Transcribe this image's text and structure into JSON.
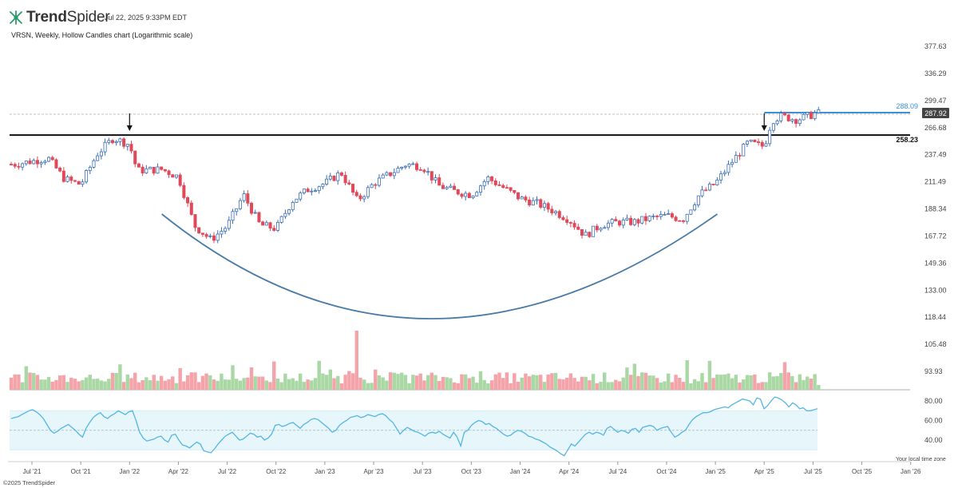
{
  "header": {
    "brand": "TrendSpider",
    "timestamp": "Jul 22, 2025 9:33PM EDT",
    "subtitle": "VRSN, Weekly, Hollow Candles chart (Logarithmic scale)"
  },
  "footer": {
    "copyright": "©2025 TrendSpider",
    "local_time": "Your local time zone"
  },
  "colors": {
    "up": "#3b6fb6",
    "down": "#e0495a",
    "vol_up": "#a9d8a4",
    "vol_down": "#f4a3a8",
    "resistance": "#111111",
    "recent_high": "#3d8fd8",
    "cup": "#4a7aa6",
    "rsi_line": "#55b5e3",
    "rsi_band": "#e6f6fa"
  },
  "chart_data": [
    {
      "type": "candlestick",
      "title": "VRSN, Weekly, Hollow Candles chart (Logarithmic scale)",
      "scale": "log",
      "x_ticks": [
        "Jul '21",
        "Oct '21",
        "Jan '22",
        "Apr '22",
        "Jul '22",
        "Oct '22",
        "Jan '23",
        "Apr '23",
        "Jul '23",
        "Oct '23",
        "Jan '24",
        "Apr '24",
        "Jul '24",
        "Oct '24",
        "Jan '25",
        "Apr '25",
        "Jul '25",
        "Oct '25",
        "Jan '26"
      ],
      "y_ticks": [
        "377.63",
        "336.29",
        "299.47",
        "266.68",
        "237.49",
        "211.49",
        "188.34",
        "167.72",
        "149.36",
        "133.00",
        "118.44",
        "105.48",
        "93.93"
      ],
      "ylim": [
        93.93,
        377.63
      ],
      "price_anchors": [
        {
          "date": "Jun '21",
          "close": 228
        },
        {
          "date": "Aug '21",
          "close": 234
        },
        {
          "date": "Sep '21",
          "close": 214
        },
        {
          "date": "Oct '21",
          "close": 209
        },
        {
          "date": "Nov '21",
          "close": 238
        },
        {
          "date": "Dec '21",
          "close": 255
        },
        {
          "date": "Jan '22",
          "close": 248
        },
        {
          "date": "Jan '22",
          "close": 222
        },
        {
          "date": "Mar '22",
          "close": 223
        },
        {
          "date": "Apr '22",
          "close": 216
        },
        {
          "date": "May '22",
          "close": 175
        },
        {
          "date": "Jun '22",
          "close": 165
        },
        {
          "date": "Jul '22",
          "close": 175
        },
        {
          "date": "Aug '22",
          "close": 200
        },
        {
          "date": "Sep '22",
          "close": 176
        },
        {
          "date": "Oct '22",
          "close": 173
        },
        {
          "date": "Nov '22",
          "close": 195
        },
        {
          "date": "Dec '22",
          "close": 205
        },
        {
          "date": "Jan '23",
          "close": 210
        },
        {
          "date": "Feb '23",
          "close": 220
        },
        {
          "date": "Mar '23",
          "close": 195
        },
        {
          "date": "Apr '23",
          "close": 210
        },
        {
          "date": "Jun '23",
          "close": 228
        },
        {
          "date": "Jul '23",
          "close": 226
        },
        {
          "date": "Aug '23",
          "close": 208
        },
        {
          "date": "Sep '23",
          "close": 203
        },
        {
          "date": "Oct '23",
          "close": 200
        },
        {
          "date": "Nov '23",
          "close": 215
        },
        {
          "date": "Dec '23",
          "close": 206
        },
        {
          "date": "Jan '24",
          "close": 197
        },
        {
          "date": "Feb '24",
          "close": 193
        },
        {
          "date": "Mar '24",
          "close": 187
        },
        {
          "date": "Apr '24",
          "close": 180
        },
        {
          "date": "May '24",
          "close": 168
        },
        {
          "date": "Jun '24",
          "close": 176
        },
        {
          "date": "Jul '24",
          "close": 178
        },
        {
          "date": "Aug '24",
          "close": 178
        },
        {
          "date": "Sep '24",
          "close": 181
        },
        {
          "date": "Oct '24",
          "close": 183
        },
        {
          "date": "Nov '24",
          "close": 180
        },
        {
          "date": "Dec '24",
          "close": 200
        },
        {
          "date": "Jan '25",
          "close": 210
        },
        {
          "date": "Feb '25",
          "close": 230
        },
        {
          "date": "Mar '25",
          "close": 250
        },
        {
          "date": "Apr '25",
          "close": 246
        },
        {
          "date": "Apr '25",
          "close": 275
        },
        {
          "date": "May '25",
          "close": 280
        },
        {
          "date": "Jun '25",
          "close": 276
        },
        {
          "date": "Jul '25",
          "close": 282
        },
        {
          "date": "Jul '25",
          "close": 287.92
        }
      ],
      "levels": [
        {
          "label": "258.23",
          "value": 258.23,
          "style": "solid-black"
        },
        {
          "label": "288.09",
          "value": 288.09,
          "style": "blue",
          "start": "Apr '25"
        }
      ],
      "last_price": {
        "label": "287.92",
        "value": 287.92
      },
      "annotations": [
        {
          "type": "arrow-down",
          "date": "Jan '22"
        },
        {
          "type": "arrow-down",
          "date": "Apr '25"
        },
        {
          "type": "cup-curve",
          "from": "Feb '22",
          "to": "Feb '25",
          "bottom": "Jul '23"
        }
      ]
    },
    {
      "type": "bar",
      "name": "Volume",
      "note": "weekly volume bars colored by candle direction"
    },
    {
      "type": "line",
      "name": "RSI",
      "y_ticks": [
        "80.00",
        "60.00",
        "40.00"
      ],
      "band": [
        30,
        70
      ],
      "midline": 50,
      "ylim": [
        20,
        90
      ],
      "values": [
        62,
        63,
        64,
        66,
        68,
        70,
        71,
        69,
        66,
        62,
        56,
        50,
        47,
        49,
        52,
        54,
        56,
        53,
        50,
        46,
        43,
        52,
        58,
        63,
        66,
        68,
        64,
        62,
        65,
        67,
        70,
        68,
        66,
        69,
        70,
        60,
        48,
        42,
        39,
        40,
        41,
        43,
        44,
        40,
        38,
        45,
        46,
        40,
        35,
        34,
        32,
        35,
        38,
        36,
        29,
        28,
        27,
        31,
        36,
        40,
        44,
        46,
        48,
        44,
        40,
        41,
        44,
        47,
        46,
        43,
        44,
        40,
        42,
        46,
        55,
        56,
        54,
        55,
        57,
        58,
        55,
        52,
        56,
        58,
        61,
        62,
        61,
        58,
        55,
        52,
        48,
        50,
        55,
        58,
        60,
        63,
        64,
        65,
        63,
        64,
        66,
        65,
        64,
        66,
        67,
        65,
        61,
        58,
        52,
        46,
        50,
        53,
        51,
        49,
        48,
        46,
        44,
        47,
        48,
        47,
        49,
        46,
        44,
        42,
        48,
        43,
        34,
        48,
        50,
        55,
        58,
        60,
        59,
        56,
        57,
        54,
        52,
        49,
        46,
        44,
        45,
        48,
        50,
        49,
        47,
        44,
        43,
        41,
        40,
        38,
        36,
        33,
        31,
        29,
        26,
        24,
        30,
        36,
        34,
        38,
        42,
        46,
        48,
        46,
        48,
        47,
        45,
        52,
        54,
        51,
        48,
        50,
        49,
        47,
        51,
        52,
        48,
        53,
        54,
        55,
        54,
        50,
        52,
        53,
        54,
        48,
        43,
        45,
        48,
        50,
        56,
        61,
        64,
        66,
        68,
        68,
        69,
        71,
        72,
        73,
        74,
        73,
        76,
        78,
        80,
        82,
        81,
        80,
        76,
        83,
        82,
        72,
        75,
        80,
        84,
        83,
        81,
        78,
        74,
        78,
        76,
        72,
        73,
        70,
        70,
        71,
        72
      ]
    }
  ]
}
